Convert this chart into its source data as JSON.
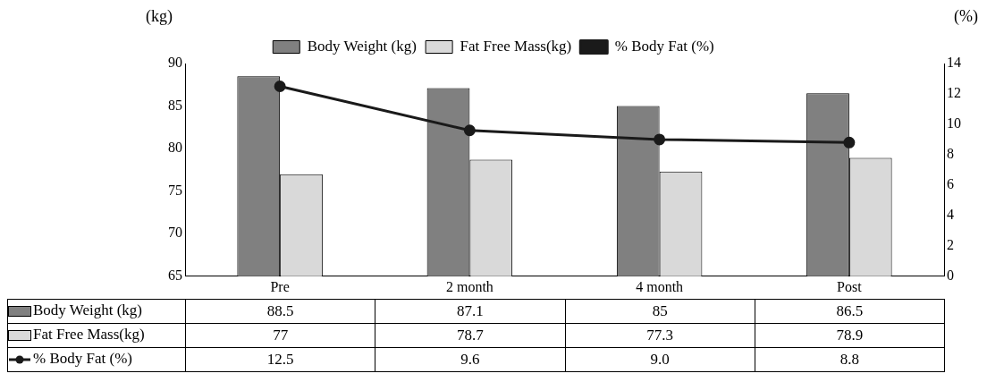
{
  "chart_data": {
    "type": "bar",
    "ylabel": "(kg)",
    "y2label": "(%)",
    "categories": [
      "Pre",
      "2 month",
      "4 month",
      "Post"
    ],
    "series": [
      {
        "name": "Body Weight (kg)",
        "color": "#808080",
        "values": [
          88.5,
          87.1,
          85,
          86.5
        ],
        "value_labels": [
          "88.5",
          "87.1",
          "85",
          "86.5"
        ]
      },
      {
        "name": "Fat Free Mass(kg)",
        "color": "#d9d9d9",
        "values": [
          77,
          78.7,
          77.3,
          78.9
        ],
        "value_labels": [
          "77",
          "78.7",
          "77.3",
          "78.9"
        ]
      },
      {
        "name": "% Body Fat (%)",
        "type": "line",
        "axis": "y2",
        "color": "#1a1a1a",
        "marker": "circle",
        "values": [
          12.5,
          9.6,
          9.0,
          8.8
        ],
        "value_labels": [
          "12.5",
          "9.6",
          "9.0",
          "8.8"
        ]
      }
    ],
    "ylim": [
      65,
      90
    ],
    "yticks": [
      65,
      70,
      75,
      80,
      85,
      90
    ],
    "y2lim": [
      0,
      14
    ],
    "y2ticks": [
      0,
      2,
      4,
      6,
      8,
      10,
      12,
      14
    ],
    "grid": false,
    "legend": "top"
  }
}
